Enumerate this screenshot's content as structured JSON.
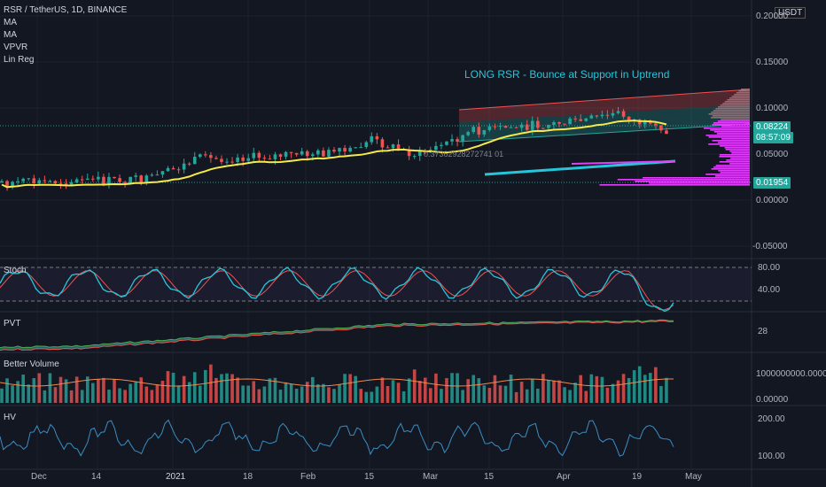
{
  "header": {
    "symbol": "RSR / TetherUS, 1D, BINANCE",
    "indicators": [
      "MA",
      "MA",
      "VPVR",
      "Lin Reg"
    ],
    "currency": "USDT"
  },
  "annotation": {
    "text": "LONG RSR - Bounce at Support in Uptrend",
    "color": "#26c6da",
    "reg_label": "0.37362928272741 01"
  },
  "price_boxes": {
    "last_price": "0.08224",
    "countdown": "08:57:09",
    "support": "0.01954"
  },
  "colors": {
    "up": "#26a69a",
    "down": "#ef5350",
    "ma": "#f5e94b",
    "annotation": "#26c6da",
    "vp": "#e040fb",
    "stoch_k": "#26c6da",
    "stoch_d": "#ef5350",
    "hv": "#3b8ec4"
  },
  "chart_data": [
    {
      "type": "candlestick",
      "name": "price",
      "y_ticks": [
        "0.20000",
        "0.15000",
        "0.10000",
        "0.05000",
        "0.00000",
        "-0.05000"
      ],
      "ylim": [
        -0.065,
        0.205
      ],
      "x_ticks": [
        "Dec",
        "14",
        "2021",
        "18",
        "Feb",
        "15",
        "Mar",
        "15",
        "Apr",
        "19",
        "May"
      ],
      "last_close": 0.08224,
      "support_level": 0.01954
    },
    {
      "type": "line",
      "name": "Stoch",
      "y_ticks": [
        "80.00",
        "40.00"
      ],
      "ylim": [
        0,
        100
      ]
    },
    {
      "type": "area",
      "name": "PVT",
      "y_ticks": [
        "28"
      ]
    },
    {
      "type": "bar",
      "name": "Better Volume",
      "y_ticks": [
        "1000000000.00000",
        "0.00000"
      ]
    },
    {
      "type": "line",
      "name": "HV",
      "y_ticks": [
        "200.00",
        "100.00"
      ]
    }
  ]
}
